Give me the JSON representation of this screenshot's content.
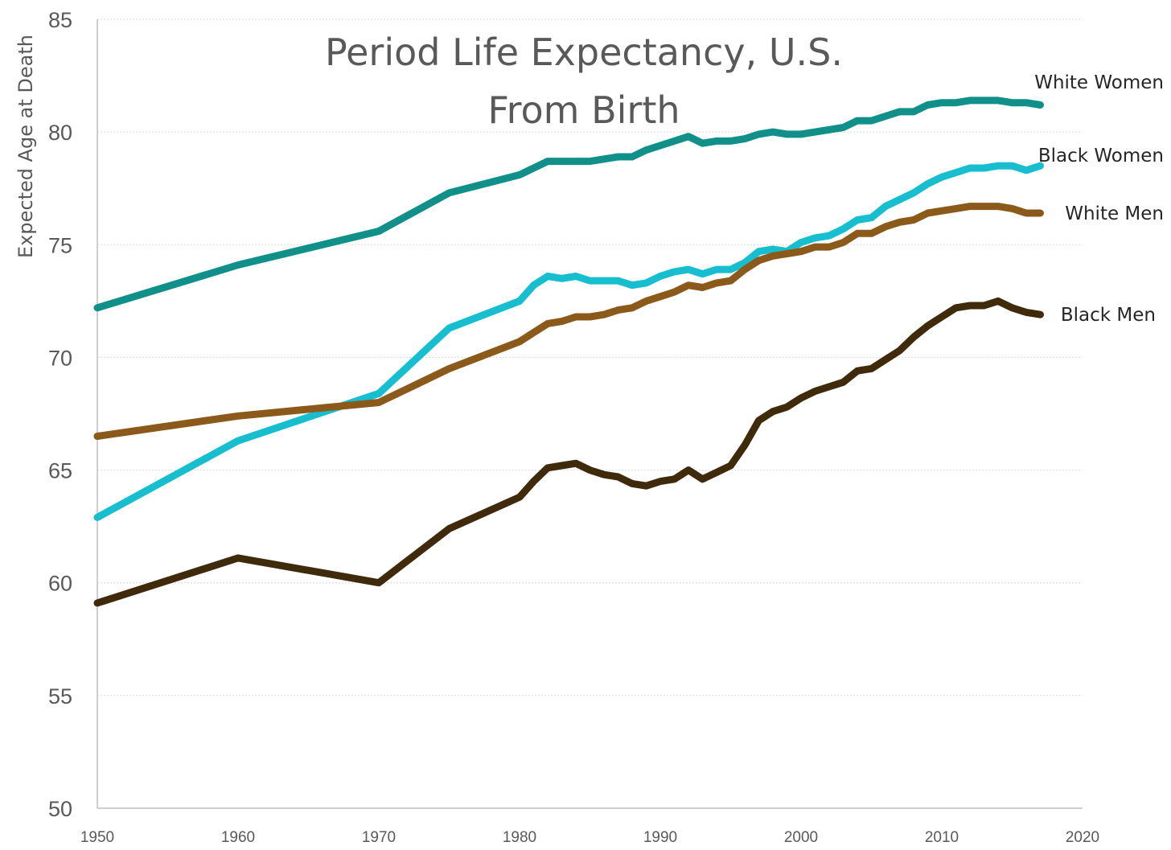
{
  "chart_data": {
    "type": "line",
    "title_lines": [
      "Period Life Expectancy, U.S.",
      "From Birth"
    ],
    "xlabel": "",
    "ylabel": "Expected Age at Death",
    "xlim": [
      1950,
      2020
    ],
    "ylim": [
      50,
      85
    ],
    "xticks": [
      1950,
      1960,
      1970,
      1980,
      1990,
      2000,
      2010,
      2020
    ],
    "yticks": [
      50,
      55,
      60,
      65,
      70,
      75,
      80,
      85
    ],
    "grid": "horizontal",
    "series": [
      {
        "name": "White Women",
        "color": "#109089",
        "x": [
          1950,
          1960,
          1970,
          1975,
          1980,
          1982,
          1983,
          1984,
          1985,
          1986,
          1987,
          1988,
          1989,
          1990,
          1991,
          1992,
          1993,
          1994,
          1995,
          1996,
          1997,
          1998,
          1999,
          2000,
          2001,
          2002,
          2003,
          2004,
          2005,
          2006,
          2007,
          2008,
          2009,
          2010,
          2011,
          2012,
          2013,
          2014,
          2015,
          2016,
          2017
        ],
        "y": [
          72.2,
          74.1,
          75.6,
          77.3,
          78.1,
          78.7,
          78.7,
          78.7,
          78.7,
          78.8,
          78.9,
          78.9,
          79.2,
          79.4,
          79.6,
          79.8,
          79.5,
          79.6,
          79.6,
          79.7,
          79.9,
          80.0,
          79.9,
          79.9,
          80.0,
          80.1,
          80.2,
          80.5,
          80.5,
          80.7,
          80.9,
          80.9,
          81.2,
          81.3,
          81.3,
          81.4,
          81.4,
          81.4,
          81.3,
          81.3,
          81.2
        ]
      },
      {
        "name": "Black Women",
        "color": "#17BECF",
        "x": [
          1950,
          1960,
          1970,
          1975,
          1980,
          1981,
          1982,
          1983,
          1984,
          1985,
          1986,
          1987,
          1988,
          1989,
          1990,
          1991,
          1992,
          1993,
          1994,
          1995,
          1996,
          1997,
          1998,
          1999,
          2000,
          2001,
          2002,
          2003,
          2004,
          2005,
          2006,
          2007,
          2008,
          2009,
          2010,
          2011,
          2012,
          2013,
          2014,
          2015,
          2016,
          2017
        ],
        "y": [
          62.9,
          66.3,
          68.4,
          71.3,
          72.5,
          73.2,
          73.6,
          73.5,
          73.6,
          73.4,
          73.4,
          73.4,
          73.2,
          73.3,
          73.6,
          73.8,
          73.9,
          73.7,
          73.9,
          73.9,
          74.2,
          74.7,
          74.8,
          74.7,
          75.1,
          75.3,
          75.4,
          75.7,
          76.1,
          76.2,
          76.7,
          77.0,
          77.3,
          77.7,
          78.0,
          78.2,
          78.4,
          78.4,
          78.5,
          78.5,
          78.3,
          78.5
        ]
      },
      {
        "name": "White Men",
        "color": "#8B5A1A",
        "x": [
          1950,
          1960,
          1970,
          1975,
          1980,
          1981,
          1982,
          1983,
          1984,
          1985,
          1986,
          1987,
          1988,
          1989,
          1990,
          1991,
          1992,
          1993,
          1994,
          1995,
          1996,
          1997,
          1998,
          1999,
          2000,
          2001,
          2002,
          2003,
          2004,
          2005,
          2006,
          2007,
          2008,
          2009,
          2010,
          2011,
          2012,
          2013,
          2014,
          2015,
          2016,
          2017
        ],
        "y": [
          66.5,
          67.4,
          68.0,
          69.5,
          70.7,
          71.1,
          71.5,
          71.6,
          71.8,
          71.8,
          71.9,
          72.1,
          72.2,
          72.5,
          72.7,
          72.9,
          73.2,
          73.1,
          73.3,
          73.4,
          73.9,
          74.3,
          74.5,
          74.6,
          74.7,
          74.9,
          74.9,
          75.1,
          75.5,
          75.5,
          75.8,
          76.0,
          76.1,
          76.4,
          76.5,
          76.6,
          76.7,
          76.7,
          76.7,
          76.6,
          76.4,
          76.4
        ]
      },
      {
        "name": "Black Men",
        "color": "#3F2A0C",
        "x": [
          1950,
          1960,
          1970,
          1975,
          1980,
          1981,
          1982,
          1983,
          1984,
          1985,
          1986,
          1987,
          1988,
          1989,
          1990,
          1991,
          1992,
          1993,
          1994,
          1995,
          1996,
          1997,
          1998,
          1999,
          2000,
          2001,
          2002,
          2003,
          2004,
          2005,
          2006,
          2007,
          2008,
          2009,
          2010,
          2011,
          2012,
          2013,
          2014,
          2015,
          2016,
          2017
        ],
        "y": [
          59.1,
          61.1,
          60.0,
          62.4,
          63.8,
          64.5,
          65.1,
          65.2,
          65.3,
          65.0,
          64.8,
          64.7,
          64.4,
          64.3,
          64.5,
          64.6,
          65.0,
          64.6,
          64.9,
          65.2,
          66.1,
          67.2,
          67.6,
          67.8,
          68.2,
          68.5,
          68.7,
          68.9,
          69.4,
          69.5,
          69.9,
          70.3,
          70.9,
          71.4,
          71.8,
          72.2,
          72.3,
          72.3,
          72.5,
          72.2,
          72.0,
          71.9
        ]
      }
    ]
  }
}
